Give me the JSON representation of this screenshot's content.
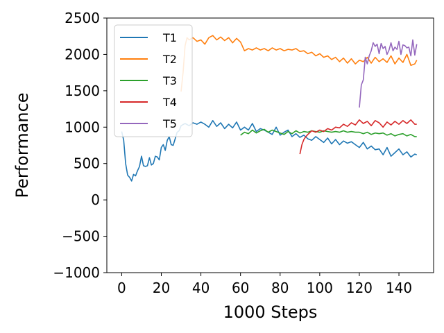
{
  "chart_data": {
    "type": "line",
    "xlabel": "1000 Steps",
    "ylabel": "Performance",
    "xlim": [
      -7.5,
      157.5
    ],
    "ylim": [
      -1000,
      2500
    ],
    "xticks": [
      0,
      20,
      40,
      60,
      80,
      100,
      120,
      140
    ],
    "yticks": [
      -1000,
      -500,
      0,
      500,
      1000,
      1500,
      2000,
      2500
    ],
    "grid": false,
    "legend_position": "top-left",
    "series": [
      {
        "name": "T1",
        "color": "#1f77b4",
        "x": [
          0,
          1,
          2,
          3,
          4,
          5,
          6,
          7,
          8,
          9,
          10,
          11,
          12,
          13,
          14,
          15,
          16,
          17,
          18,
          19,
          20,
          21,
          22,
          23,
          24,
          25,
          26,
          27,
          28,
          29,
          30,
          32,
          34,
          36,
          38,
          40,
          42,
          44,
          46,
          48,
          50,
          52,
          54,
          56,
          58,
          60,
          62,
          64,
          66,
          68,
          70,
          72,
          74,
          76,
          78,
          80,
          82,
          84,
          86,
          88,
          90,
          92,
          94,
          96,
          98,
          100,
          102,
          104,
          106,
          108,
          110,
          112,
          114,
          116,
          118,
          120,
          122,
          124,
          126,
          128,
          130,
          132,
          134,
          136,
          138,
          140,
          142,
          144,
          146,
          148,
          149
        ],
        "values": [
          940,
          820,
          500,
          340,
          310,
          260,
          350,
          330,
          400,
          460,
          600,
          470,
          460,
          470,
          580,
          480,
          500,
          600,
          590,
          550,
          720,
          760,
          680,
          820,
          870,
          760,
          750,
          840,
          930,
          950,
          1020,
          1050,
          1020,
          1060,
          1040,
          1070,
          1040,
          1000,
          1090,
          1010,
          1060,
          980,
          1040,
          990,
          1070,
          960,
          1000,
          960,
          1050,
          940,
          980,
          960,
          930,
          900,
          1000,
          890,
          930,
          960,
          870,
          910,
          860,
          890,
          840,
          820,
          870,
          830,
          790,
          850,
          770,
          830,
          760,
          810,
          780,
          800,
          760,
          720,
          790,
          700,
          740,
          690,
          700,
          620,
          720,
          600,
          650,
          700,
          620,
          660,
          590,
          630,
          620
        ]
      },
      {
        "name": "T2",
        "color": "#ff7f0e",
        "x": [
          30,
          31,
          32,
          33,
          34,
          36,
          38,
          40,
          42,
          44,
          46,
          48,
          50,
          52,
          54,
          56,
          58,
          60,
          62,
          64,
          66,
          68,
          70,
          72,
          74,
          76,
          78,
          80,
          82,
          84,
          86,
          88,
          90,
          92,
          94,
          96,
          98,
          100,
          102,
          104,
          106,
          108,
          110,
          112,
          114,
          116,
          118,
          120,
          122,
          124,
          126,
          128,
          130,
          132,
          134,
          136,
          138,
          140,
          142,
          144,
          146,
          148,
          149
        ],
        "values": [
          1490,
          1750,
          2120,
          2230,
          2200,
          2230,
          2180,
          2200,
          2140,
          2230,
          2260,
          2200,
          2240,
          2190,
          2230,
          2160,
          2220,
          2170,
          2050,
          2080,
          2060,
          2090,
          2060,
          2080,
          2050,
          2090,
          2060,
          2080,
          2050,
          2070,
          2060,
          2080,
          2040,
          2050,
          2010,
          2030,
          1980,
          2010,
          1960,
          1980,
          1930,
          1960,
          1900,
          1950,
          1880,
          1940,
          1870,
          1920,
          1900,
          1960,
          1880,
          1960,
          1900,
          1940,
          1890,
          1980,
          1870,
          1950,
          1890,
          2000,
          1850,
          1870,
          1920
        ]
      },
      {
        "name": "T3",
        "color": "#2ca02c",
        "x": [
          60,
          62,
          64,
          66,
          68,
          70,
          72,
          74,
          76,
          78,
          80,
          82,
          84,
          86,
          88,
          90,
          92,
          94,
          96,
          98,
          100,
          102,
          104,
          106,
          108,
          110,
          112,
          114,
          116,
          118,
          120,
          122,
          124,
          126,
          128,
          130,
          132,
          134,
          136,
          138,
          140,
          142,
          144,
          146,
          148,
          149
        ],
        "values": [
          890,
          930,
          910,
          960,
          920,
          950,
          970,
          930,
          960,
          940,
          920,
          900,
          940,
          910,
          950,
          920,
          940,
          930,
          950,
          940,
          930,
          950,
          940,
          930,
          940,
          930,
          950,
          930,
          940,
          930,
          930,
          910,
          930,
          900,
          920,
          910,
          920,
          890,
          910,
          880,
          900,
          910,
          880,
          900,
          870,
          870
        ]
      },
      {
        "name": "T4",
        "color": "#d62728",
        "x": [
          90,
          91,
          92,
          93,
          94,
          96,
          98,
          100,
          102,
          104,
          106,
          108,
          110,
          112,
          114,
          116,
          118,
          120,
          122,
          124,
          126,
          128,
          130,
          132,
          134,
          136,
          138,
          140,
          142,
          144,
          146,
          148,
          149
        ],
        "values": [
          630,
          760,
          830,
          870,
          900,
          950,
          930,
          960,
          940,
          980,
          960,
          1000,
          990,
          1040,
          1010,
          1060,
          1030,
          1100,
          1050,
          1080,
          1020,
          1090,
          1060,
          1000,
          1070,
          1030,
          1080,
          1040,
          1090,
          1050,
          1100,
          1040,
          1040
        ]
      },
      {
        "name": "T5",
        "color": "#9467bd",
        "x": [
          120,
          121,
          122,
          123,
          124,
          125,
          126,
          127,
          128,
          129,
          130,
          131,
          132,
          133,
          134,
          135,
          136,
          137,
          138,
          139,
          140,
          141,
          142,
          143,
          144,
          145,
          146,
          147,
          148,
          149
        ],
        "values": [
          1270,
          1580,
          1650,
          1960,
          1870,
          1980,
          2050,
          2160,
          2110,
          2140,
          2010,
          2150,
          2080,
          2110,
          2000,
          2060,
          2160,
          2050,
          2100,
          2070,
          2180,
          2000,
          2130,
          2120,
          2090,
          2100,
          1980,
          2200,
          1990,
          2140
        ]
      }
    ]
  }
}
